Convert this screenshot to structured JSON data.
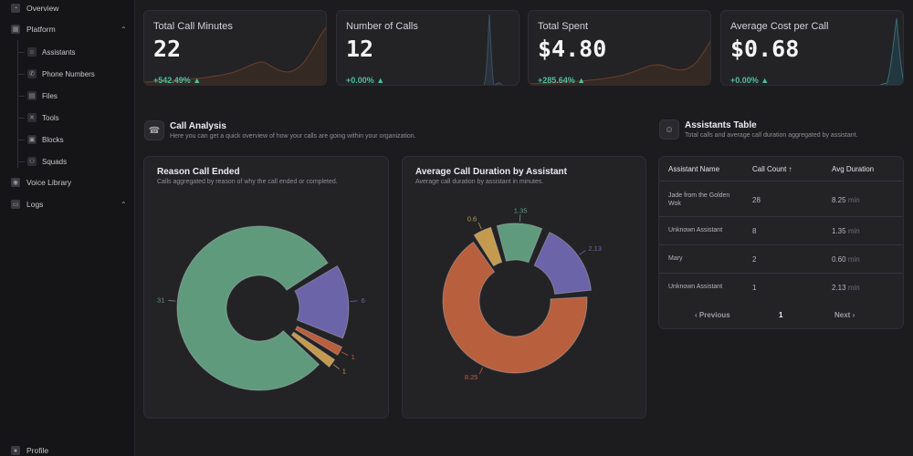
{
  "sidebar": {
    "overview": "Overview",
    "platform": "Platform",
    "platform_children": [
      "Assistants",
      "Phone Numbers",
      "Files",
      "Tools",
      "Blocks",
      "Squads"
    ],
    "voice_library": "Voice Library",
    "logs": "Logs",
    "profile": "Profile"
  },
  "stats": [
    {
      "title": "Total Call Minutes",
      "value": "22",
      "change": "+542.49% ▲",
      "accent": "#8a4a2a"
    },
    {
      "title": "Number of Calls",
      "value": "12",
      "change": "+0.00% ▲",
      "accent": "#3a4a5a"
    },
    {
      "title": "Total Spent",
      "value": "$4.80",
      "change": "+285.64% ▲",
      "accent": "#8a4a2a"
    },
    {
      "title": "Average Cost per Call",
      "value": "$0.68",
      "change": "+0.00% ▲",
      "accent": "#3a5a6a"
    }
  ],
  "call_analysis": {
    "title": "Call Analysis",
    "subtitle": "Here you can get a quick overview of how your calls are going within your organization."
  },
  "assistants_table": {
    "title": "Assistants Table",
    "subtitle": "Total calls and average call duration aggregated by assistant.",
    "headers": [
      "Assistant Name",
      "Call Count ↑",
      "Avg Duration"
    ],
    "rows": [
      {
        "name": "Jade from the Golden Wok",
        "count": "28",
        "duration": "8.25",
        "unit": "min"
      },
      {
        "name": "Unknown Assistant",
        "count": "8",
        "duration": "1.35",
        "unit": "min"
      },
      {
        "name": "Mary",
        "count": "2",
        "duration": "0.60",
        "unit": "min"
      },
      {
        "name": "Unknown Assistant",
        "count": "1",
        "duration": "2.13",
        "unit": "min"
      }
    ],
    "pager": {
      "previous": "‹  Previous",
      "page": "1",
      "next": "Next  ›"
    }
  },
  "chart_data": [
    {
      "type": "pie",
      "title": "Reason Call Ended",
      "subtitle": "Calls aggregated by reason of why the call ended or completed.",
      "values": [
        31,
        6,
        1,
        1
      ],
      "labels": [
        "31",
        "6",
        "1",
        "1"
      ],
      "colors": [
        "#5f9a7c",
        "#6c64a8",
        "#b85f3e",
        "#c49a4e"
      ]
    },
    {
      "type": "pie",
      "title": "Average Call Duration by Assistant",
      "subtitle": "Average call duration by assistant in minutes.",
      "values": [
        8.25,
        0.6,
        1.35,
        2.13
      ],
      "labels": [
        "8.25",
        "0.6",
        "1.35",
        "2.13"
      ],
      "colors": [
        "#b85f3e",
        "#c49a4e",
        "#5f9a7c",
        "#6c64a8"
      ]
    }
  ]
}
